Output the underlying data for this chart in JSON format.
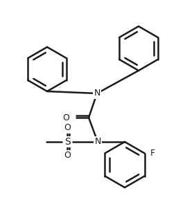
{
  "bg_color": "#ffffff",
  "line_color": "#1a1a1a",
  "line_width": 1.8,
  "fig_width": 2.67,
  "fig_height": 3.18,
  "dpi": 100,
  "labels": {
    "N_amide": "N",
    "N_sulfonyl": "N",
    "O_carbonyl": "O",
    "S": "S",
    "O_s1": "O",
    "O_s2": "O",
    "F": "F"
  },
  "font_size": 9,
  "font_size_small": 8
}
